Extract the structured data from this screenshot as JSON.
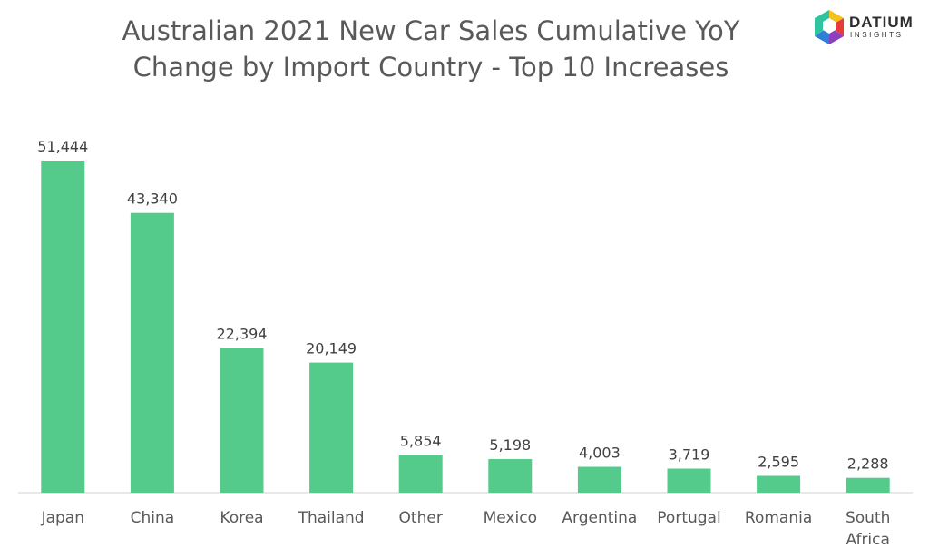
{
  "title": {
    "line1": "Australian 2021 New Car Sales Cumulative YoY",
    "line2": "Change by Import Country - Top 10 Increases"
  },
  "logo": {
    "name": "DATIUM",
    "sub": "INSIGHTS",
    "colors": [
      "#f4c21b",
      "#e53b3b",
      "#8b3fbf",
      "#2f7fd8",
      "#2ec4a0"
    ]
  },
  "chart_data": {
    "type": "bar",
    "title": "Australian 2021 New Car Sales Cumulative YoY Change by Import Country - Top 10 Increases",
    "categories": [
      "Japan",
      "China",
      "Korea",
      "Thailand",
      "Other",
      "Mexico",
      "Argentina",
      "Portugal",
      "Romania",
      "South Africa"
    ],
    "category_lines": [
      [
        "Japan"
      ],
      [
        "China"
      ],
      [
        "Korea"
      ],
      [
        "Thailand"
      ],
      [
        "Other"
      ],
      [
        "Mexico"
      ],
      [
        "Argentina"
      ],
      [
        "Portugal"
      ],
      [
        "Romania"
      ],
      [
        "South",
        "Africa"
      ]
    ],
    "values": [
      51444,
      43340,
      22394,
      20149,
      5854,
      5198,
      4003,
      3719,
      2595,
      2288
    ],
    "value_labels": [
      "51,444",
      "43,340",
      "22,394",
      "20,149",
      "5,854",
      "5,198",
      "4,003",
      "3,719",
      "2,595",
      "2,288"
    ],
    "bar_color": "#55cb8b",
    "xlabel": "",
    "ylabel": "",
    "ylim": [
      0,
      51444
    ],
    "grid": false,
    "legend": "none"
  }
}
